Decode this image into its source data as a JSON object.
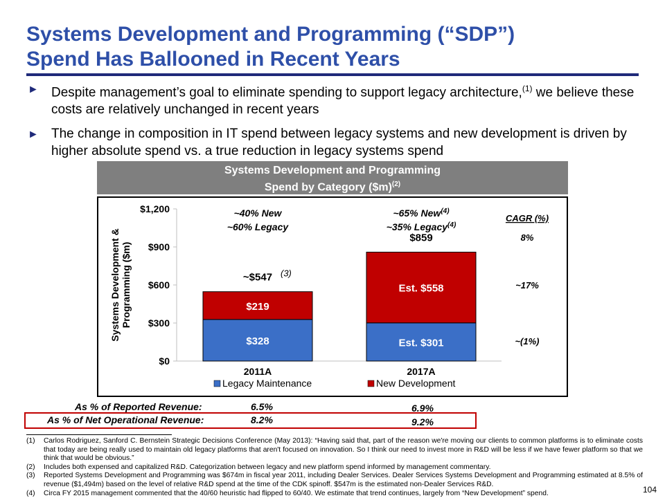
{
  "slide": {
    "title_line1": "Systems Development and Programming (“SDP”)",
    "title_line2": "Spend Has Ballooned in Recent Years",
    "bullets": [
      {
        "text": "Despite management’s goal to eliminate spending to support legacy architecture,",
        "sup": "(1)",
        "text_after": " we believe these costs are relatively unchanged in recent years"
      },
      {
        "text": "The change in composition in IT spend between legacy systems and new development is driven by higher absolute spend vs. a true reduction in legacy systems spend",
        "sup": "",
        "text_after": ""
      }
    ],
    "chart_header_line1": "Systems Development and Programming",
    "chart_header_line2": "Spend by Category ($m)",
    "chart_header_sup": "(2)",
    "page_number": "104",
    "bullet_marker": "►"
  },
  "chart_data": {
    "type": "bar",
    "stacked": true,
    "categories": [
      "2011A",
      "2017A"
    ],
    "series": [
      {
        "name": "Legacy Maintenance",
        "values": [
          328,
          301
        ],
        "labels": [
          "$328",
          "Est. $301"
        ],
        "color": "#3b6fc7"
      },
      {
        "name": "New Development",
        "values": [
          219,
          558
        ],
        "labels": [
          "$219",
          "Est. $558"
        ],
        "color": "#c00000"
      }
    ],
    "totals": [
      547,
      859
    ],
    "total_labels": [
      "~$547",
      "$859"
    ],
    "total_label_notes": [
      "(3)",
      ""
    ],
    "mix_annotations": [
      {
        "line1": "~40% New",
        "line1_sup": "",
        "line2": "~60% Legacy",
        "line2_sup": ""
      },
      {
        "line1": "~65% New",
        "line1_sup": "(4)",
        "line2": "~35% Legacy",
        "line2_sup": "(4)"
      }
    ],
    "ylabel_line1": "Systems Development &",
    "ylabel_line2": "Programming ($m)",
    "ylim": [
      0,
      1200
    ],
    "yticks": [
      0,
      300,
      600,
      900,
      1200
    ],
    "ytick_labels": [
      "$0",
      "$300",
      "$600",
      "$900",
      "$1,200"
    ],
    "cagr_title": "CAGR (%)",
    "cagr_values": [
      "8%",
      "~17%",
      "~(1%)"
    ],
    "legend_position": "bottom"
  },
  "revenue_metrics": {
    "reported_label": "As % of Reported Revenue:",
    "reported_values": [
      "6.5%",
      "6.9%"
    ],
    "net_label": "As % of Net Operational Revenue:",
    "net_values": [
      "8.2%",
      "9.2%"
    ]
  },
  "footnotes": [
    {
      "num": "(1)",
      "text": "Carlos Rodriguez, Sanford C. Bernstein Strategic Decisions Conference (May 2013): “Having said that, part of the reason we're moving our clients to common platforms is to eliminate costs that today are being really used to maintain old legacy platforms that aren't focused on innovation. So I think our need to invest more in R&D will be less if we have fewer platform so that we think that would be obvious.”"
    },
    {
      "num": "(2)",
      "text": "Includes both expensed and capitalized R&D. Categorization between legacy and new platform spend informed by management commentary."
    },
    {
      "num": "(3)",
      "text": "Reported Systems Development and Programming was $674m in fiscal year 2011, including Dealer Services. Dealer Services Systems Development and Programming estimated at 8.5% of revenue ($1,494m) based on the level of relative R&D spend at the time of the CDK spinoff. $547m is the estimated non-Dealer Services R&D."
    },
    {
      "num": "(4)",
      "text": "Circa FY 2015 management commented that the 40/60 heuristic had flipped to 60/40. We estimate that trend continues, largely from “New Development” spend."
    }
  ]
}
